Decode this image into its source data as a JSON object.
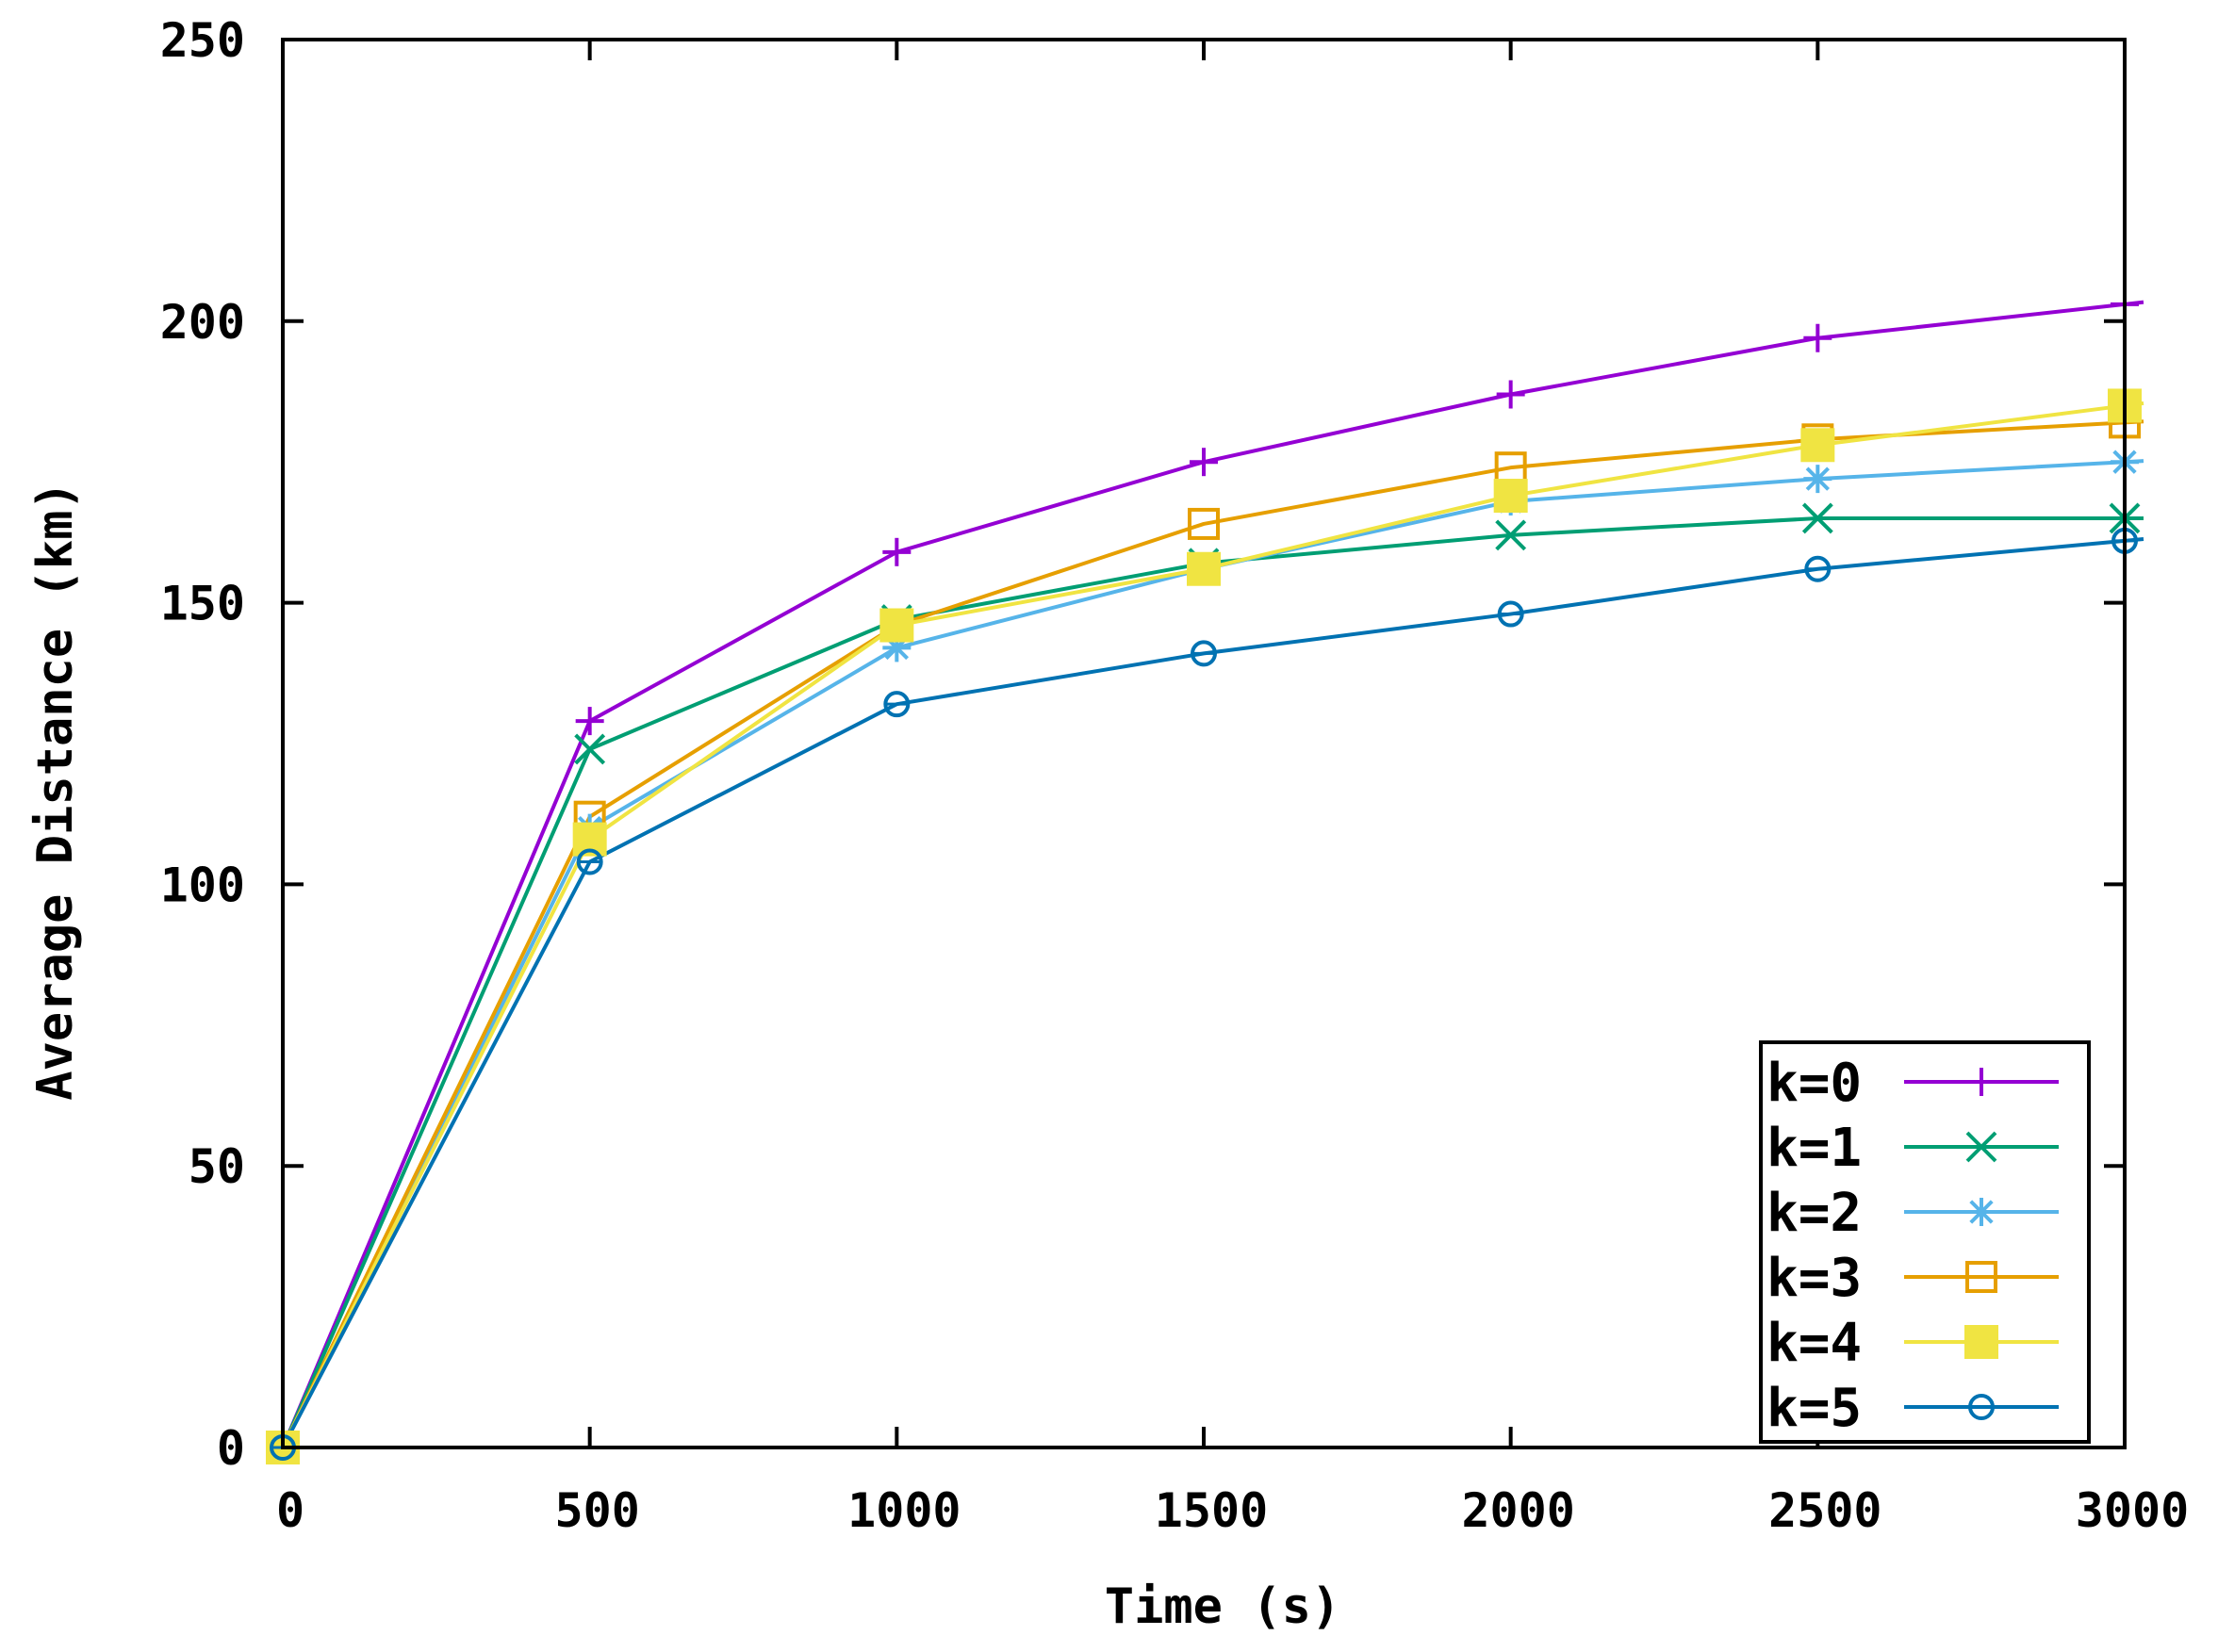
{
  "chart_data": {
    "type": "line",
    "title": "",
    "xlabel": "Time (s)",
    "ylabel": "Average Distance (km)",
    "xlim": [
      0,
      3000
    ],
    "ylim": [
      0,
      250
    ],
    "x": [
      0,
      500,
      1000,
      1500,
      2000,
      2500,
      3000
    ],
    "xticks": [
      0,
      500,
      1000,
      1500,
      2000,
      2500,
      3000
    ],
    "xtick_labels": [
      "0",
      "500",
      "1000",
      "1500",
      "2000",
      "2500",
      "3000"
    ],
    "yticks": [
      0,
      50,
      100,
      150,
      200,
      250
    ],
    "ytick_labels": [
      "0",
      "50",
      "100",
      "150",
      "200",
      "250"
    ],
    "grid": false,
    "legend_position": "bottom-right",
    "series": [
      {
        "name": "k=0",
        "color": "#9400d3",
        "marker": "plus",
        "values": [
          0,
          129,
          159,
          175,
          187,
          197,
          203
        ]
      },
      {
        "name": "k=1",
        "color": "#009e73",
        "marker": "cross",
        "values": [
          0,
          124,
          147,
          157,
          162,
          165,
          165
        ]
      },
      {
        "name": "k=2",
        "color": "#56b4e9",
        "marker": "asterisk",
        "values": [
          0,
          110,
          142,
          156,
          168,
          172,
          175
        ]
      },
      {
        "name": "k=3",
        "color": "#e69f00",
        "marker": "open-square",
        "values": [
          0,
          112,
          146,
          164,
          174,
          179,
          182
        ]
      },
      {
        "name": "k=4",
        "color": "#f0e442",
        "marker": "filled-square",
        "values": [
          0,
          108,
          146,
          156,
          169,
          178,
          185
        ]
      },
      {
        "name": "k=5",
        "color": "#0072b2",
        "marker": "open-circle",
        "values": [
          0,
          104,
          132,
          141,
          148,
          156,
          161
        ]
      }
    ]
  }
}
